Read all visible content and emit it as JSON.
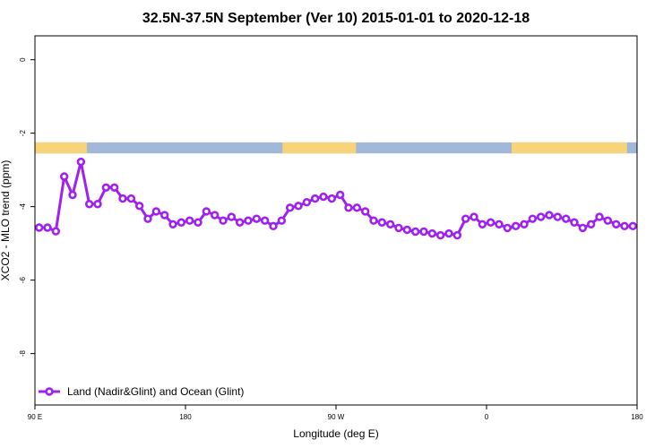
{
  "chart_data": {
    "type": "line",
    "title": "32.5N-37.5N September (Ver 10)   2015-01-01 to 2020-12-18",
    "xlabel": "Longitude (deg E)",
    "ylabel": "XCO2 - MLO trend (ppm)",
    "xlim": [
      90,
      450
    ],
    "ylim": [
      -9.4,
      0.65
    ],
    "x_ticks": [
      {
        "value": 90,
        "label": "90 E"
      },
      {
        "value": 180,
        "label": "180"
      },
      {
        "value": 270,
        "label": "90 W"
      },
      {
        "value": 360,
        "label": "0"
      },
      {
        "value": 450,
        "label": "180"
      }
    ],
    "y_ticks": [
      {
        "value": 0,
        "label": "0"
      },
      {
        "value": -2,
        "label": "-2"
      },
      {
        "value": -4,
        "label": "-4"
      },
      {
        "value": -6,
        "label": "-6"
      },
      {
        "value": -8,
        "label": "-8"
      }
    ],
    "land_ocean_band": {
      "y_range": [
        -2.25,
        -2.55
      ],
      "ocean_color": "#a2b8d8",
      "land_color": "#f7d479",
      "land_segments": [
        [
          90,
          121
        ],
        [
          238,
          282
        ],
        [
          375,
          444
        ]
      ]
    },
    "legend": {
      "position": "bottom-left"
    },
    "series": [
      {
        "name": "Land (Nadir&Glint) and Ocean (Glint)",
        "color": "#a020f0",
        "x": [
          92.5,
          97.5,
          102.5,
          107.5,
          112.5,
          117.5,
          122.5,
          127.5,
          132.5,
          137.5,
          142.5,
          147.5,
          152.5,
          157.5,
          162.5,
          167.5,
          172.5,
          177.5,
          182.5,
          187.5,
          192.5,
          197.5,
          202.5,
          207.5,
          212.5,
          217.5,
          222.5,
          227.5,
          232.5,
          237.5,
          242.5,
          247.5,
          252.5,
          257.5,
          262.5,
          267.5,
          272.5,
          277.5,
          282.5,
          287.5,
          292.5,
          297.5,
          302.5,
          307.5,
          312.5,
          317.5,
          322.5,
          327.5,
          332.5,
          337.5,
          342.5,
          347.5,
          352.5,
          357.5,
          362.5,
          367.5,
          372.5,
          377.5,
          382.5,
          387.5,
          392.5,
          397.5,
          402.5,
          407.5,
          412.5,
          417.5,
          422.5,
          427.5,
          432.5,
          437.5,
          442.5,
          447.5
        ],
        "y": [
          -4.57,
          -4.57,
          -4.67,
          -3.18,
          -3.68,
          -2.78,
          -3.93,
          -3.93,
          -3.48,
          -3.48,
          -3.78,
          -3.78,
          -3.98,
          -4.33,
          -4.13,
          -4.23,
          -4.48,
          -4.43,
          -4.38,
          -4.43,
          -4.13,
          -4.23,
          -4.38,
          -4.28,
          -4.43,
          -4.38,
          -4.33,
          -4.38,
          -4.53,
          -4.38,
          -4.03,
          -3.98,
          -3.88,
          -3.78,
          -3.73,
          -3.78,
          -3.68,
          -4.03,
          -4.03,
          -4.13,
          -4.38,
          -4.43,
          -4.48,
          -4.58,
          -4.63,
          -4.68,
          -4.68,
          -4.73,
          -4.78,
          -4.73,
          -4.78,
          -4.33,
          -4.28,
          -4.48,
          -4.43,
          -4.48,
          -4.58,
          -4.53,
          -4.48,
          -4.33,
          -4.28,
          -4.23,
          -4.28,
          -4.33,
          -4.43,
          -4.58,
          -4.48,
          -4.28,
          -4.38,
          -4.48,
          -4.53,
          -4.53
        ]
      }
    ]
  }
}
